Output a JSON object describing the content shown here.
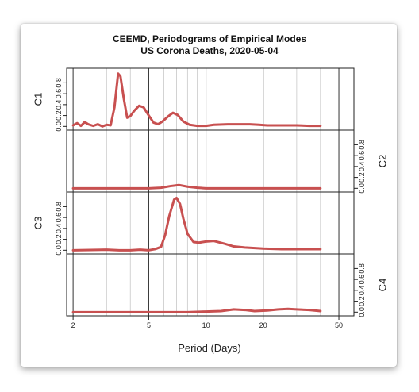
{
  "chart_data": {
    "type": "line",
    "title_line1": "CEEMD, Periodograms of Empirical Modes",
    "title_line2": "US Corona Deaths, 2020-05-04",
    "xlabel": "Period (Days)",
    "x_scale": "log",
    "x_ticks": [
      2,
      5,
      10,
      20,
      50
    ],
    "x_range": [
      1.85,
      60
    ],
    "y_ticks": [
      0.0,
      0.2,
      0.4,
      0.6,
      0.8
    ],
    "y_tick_labels": [
      "0.0",
      "0.2",
      "0.4",
      "0.6",
      "0.8"
    ],
    "ylim": [
      0,
      1.0
    ],
    "line_color": "#c85050",
    "grid_major_color": "#333333",
    "grid_minor_color": "#c8c8c8",
    "panels": [
      {
        "name": "C1",
        "axis_side": "left",
        "x": [
          2.0,
          2.1,
          2.2,
          2.3,
          2.4,
          2.55,
          2.7,
          2.85,
          3.0,
          3.15,
          3.3,
          3.45,
          3.55,
          3.7,
          3.85,
          4.0,
          4.2,
          4.45,
          4.7,
          5.0,
          5.3,
          5.6,
          5.9,
          6.3,
          6.7,
          7.1,
          7.6,
          8.2,
          9.0,
          10.0,
          11.0,
          13.0,
          15.0,
          17.0,
          19.0,
          21.0,
          25.0,
          30.0,
          35.0,
          40.0
        ],
        "y": [
          0.02,
          0.06,
          0.01,
          0.08,
          0.04,
          0.01,
          0.04,
          0.0,
          0.03,
          0.02,
          0.35,
          0.97,
          0.92,
          0.5,
          0.16,
          0.19,
          0.29,
          0.38,
          0.35,
          0.2,
          0.07,
          0.04,
          0.09,
          0.18,
          0.25,
          0.21,
          0.09,
          0.03,
          0.01,
          0.01,
          0.03,
          0.04,
          0.04,
          0.04,
          0.03,
          0.02,
          0.02,
          0.02,
          0.01,
          0.01
        ]
      },
      {
        "name": "C2",
        "axis_side": "right",
        "x": [
          2.0,
          3.0,
          4.0,
          5.0,
          5.8,
          6.5,
          7.2,
          8.0,
          9.0,
          10.0,
          15.0,
          20.0,
          30.0,
          40.0
        ],
        "y": [
          0.0,
          0.0,
          0.0,
          0.0,
          0.01,
          0.04,
          0.06,
          0.03,
          0.01,
          0.0,
          0.0,
          0.0,
          0.0,
          0.0
        ]
      },
      {
        "name": "C3",
        "axis_side": "left",
        "x": [
          2.0,
          3.0,
          3.5,
          4.0,
          4.5,
          5.0,
          5.4,
          5.8,
          6.1,
          6.4,
          6.8,
          7.0,
          7.3,
          7.6,
          8.0,
          8.6,
          9.2,
          10.0,
          11.0,
          12.5,
          14.0,
          16.0,
          20.0,
          25.0,
          30.0,
          40.0
        ],
        "y": [
          0.0,
          0.01,
          0.0,
          0.0,
          0.01,
          0.0,
          0.02,
          0.06,
          0.28,
          0.62,
          0.93,
          0.96,
          0.85,
          0.58,
          0.3,
          0.15,
          0.14,
          0.16,
          0.17,
          0.12,
          0.07,
          0.05,
          0.03,
          0.02,
          0.02,
          0.02
        ]
      },
      {
        "name": "C4",
        "axis_side": "right",
        "x": [
          2.0,
          5.0,
          8.0,
          10.0,
          12.0,
          14.0,
          16.0,
          18.0,
          21.0,
          24.0,
          27.0,
          30.0,
          35.0,
          40.0
        ],
        "y": [
          0.0,
          0.0,
          0.0,
          0.01,
          0.02,
          0.05,
          0.04,
          0.02,
          0.03,
          0.05,
          0.06,
          0.05,
          0.04,
          0.02
        ]
      }
    ]
  }
}
